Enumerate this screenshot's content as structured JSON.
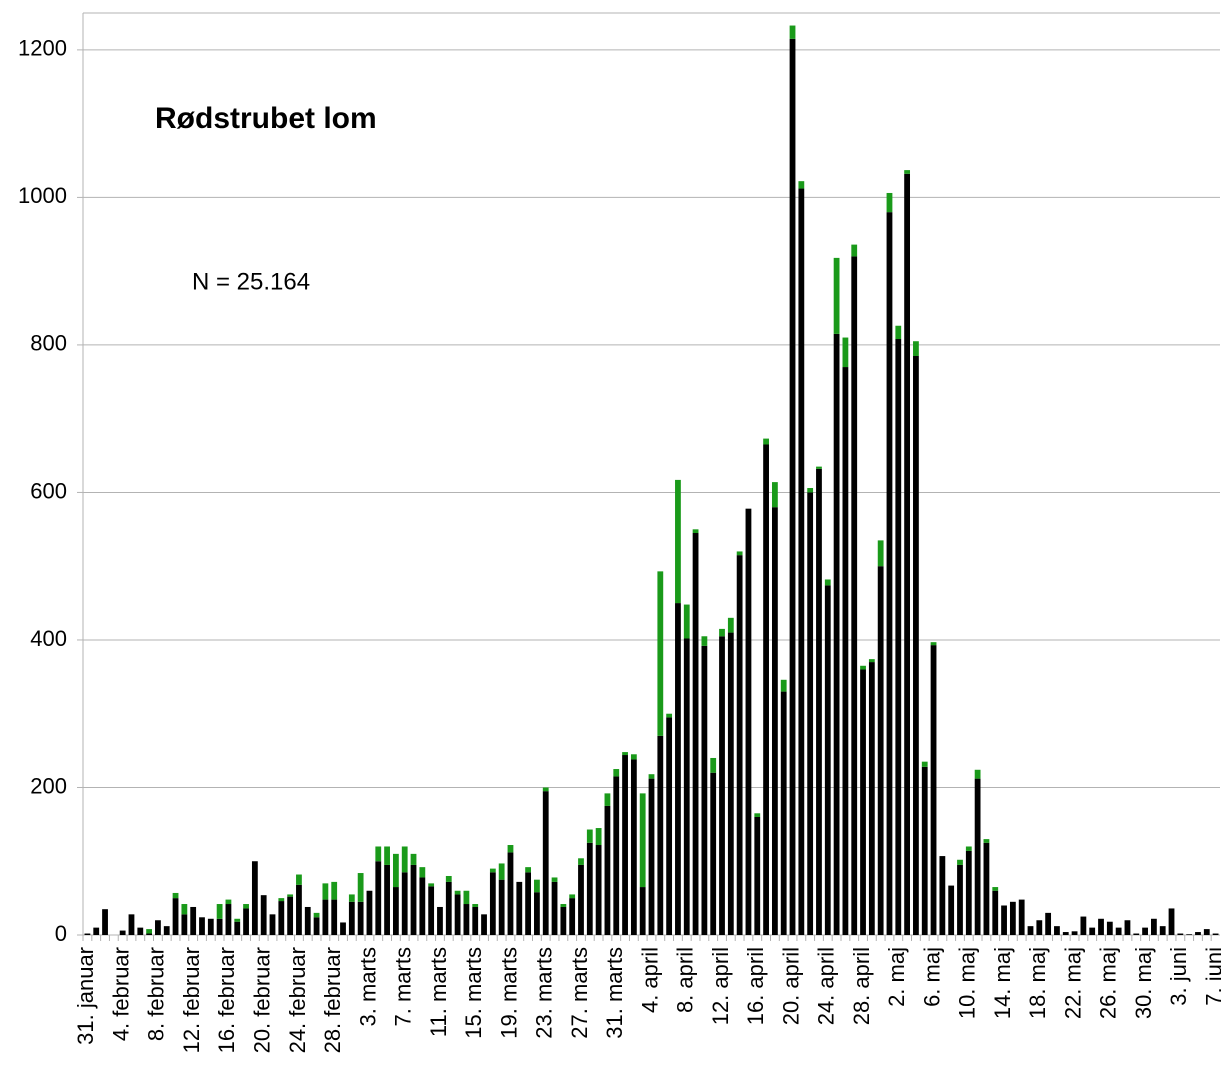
{
  "chart_data": {
    "type": "stacked_bar",
    "title": "Rødstrubet lom",
    "annotations": [
      "N = 25.164"
    ],
    "categories": [
      "31. januar",
      null,
      null,
      null,
      "4. februar",
      null,
      null,
      null,
      "8. februar",
      null,
      null,
      null,
      "12. februar",
      null,
      null,
      null,
      "16. februar",
      null,
      null,
      null,
      "20. februar",
      null,
      null,
      null,
      "24. februar",
      null,
      null,
      null,
      "28. februar",
      null,
      null,
      null,
      "3. marts",
      null,
      null,
      null,
      "7. marts",
      null,
      null,
      null,
      "11. marts",
      null,
      null,
      null,
      "15. marts",
      null,
      null,
      null,
      "19. marts",
      null,
      null,
      null,
      "23. marts",
      null,
      null,
      null,
      "27. marts",
      null,
      null,
      null,
      "31. marts",
      null,
      null,
      null,
      "4. april",
      null,
      null,
      null,
      "8. april",
      null,
      null,
      null,
      "12. april",
      null,
      null,
      null,
      "16. april",
      null,
      null,
      null,
      "20. april",
      null,
      null,
      null,
      "24. april",
      null,
      null,
      null,
      "28. april",
      null,
      null,
      null,
      "2. maj",
      null,
      null,
      null,
      "6. maj",
      null,
      null,
      null,
      "10. maj",
      null,
      null,
      null,
      "14. maj",
      null,
      null,
      null,
      "18. maj",
      null,
      null,
      null,
      "22. maj",
      null,
      null,
      null,
      "26. maj",
      null,
      null,
      null,
      "30. maj",
      null,
      null,
      null,
      "3. juni",
      null,
      null,
      null,
      "7. juni"
    ],
    "series": [
      {
        "color": "#000000",
        "values": [
          2,
          10,
          35,
          0,
          6,
          28,
          10,
          2,
          20,
          12,
          50,
          28,
          38,
          24,
          22,
          22,
          42,
          18,
          36,
          100,
          54,
          28,
          46,
          52,
          68,
          38,
          24,
          48,
          48,
          17,
          45,
          45,
          60,
          100,
          95,
          65,
          85,
          95,
          78,
          66,
          38,
          72,
          55,
          42,
          38,
          28,
          85,
          75,
          112,
          72,
          85,
          58,
          195,
          72,
          38,
          50,
          95,
          125,
          122,
          175,
          215,
          244,
          238,
          65,
          212,
          270,
          295,
          450,
          402,
          545,
          392,
          220,
          405,
          410,
          515,
          578,
          160,
          665,
          580,
          330,
          1215,
          1012,
          600,
          632,
          474,
          815,
          770,
          920,
          360,
          370,
          500,
          980,
          808,
          1032,
          785,
          228,
          393,
          107,
          67,
          95,
          114,
          212,
          125,
          60,
          40,
          45,
          48,
          12,
          20,
          30,
          12,
          4,
          5,
          25,
          10,
          22,
          18,
          10,
          20,
          2,
          10,
          22,
          12,
          36,
          2,
          1,
          4,
          8,
          2
        ]
      },
      {
        "color": "#1a9a1a",
        "values": [
          0,
          0,
          0,
          0,
          0,
          0,
          0,
          6,
          0,
          0,
          7,
          14,
          0,
          0,
          0,
          20,
          6,
          4,
          6,
          0,
          0,
          0,
          4,
          3,
          14,
          0,
          6,
          22,
          24,
          0,
          10,
          39,
          0,
          20,
          25,
          45,
          35,
          15,
          14,
          4,
          0,
          8,
          5,
          18,
          4,
          0,
          5,
          22,
          10,
          0,
          7,
          17,
          5,
          6,
          4,
          5,
          9,
          18,
          23,
          17,
          10,
          4,
          7,
          127,
          6,
          223,
          5,
          167,
          46,
          5,
          13,
          20,
          10,
          20,
          5,
          0,
          5,
          8,
          34,
          16,
          18,
          10,
          6,
          3,
          8,
          103,
          40,
          16,
          5,
          4,
          35,
          26,
          18,
          5,
          20,
          7,
          4,
          0,
          0,
          7,
          6,
          12,
          5,
          5,
          0,
          0,
          0,
          0,
          0,
          0,
          0,
          0,
          0,
          0,
          0,
          0,
          0,
          0,
          0,
          0,
          0,
          0,
          0,
          0,
          0,
          0,
          0,
          0,
          0
        ]
      }
    ],
    "ylim": [
      0,
      1250
    ],
    "yticks": [
      0,
      200,
      400,
      600,
      800,
      1000,
      1200
    ],
    "grid": true
  }
}
